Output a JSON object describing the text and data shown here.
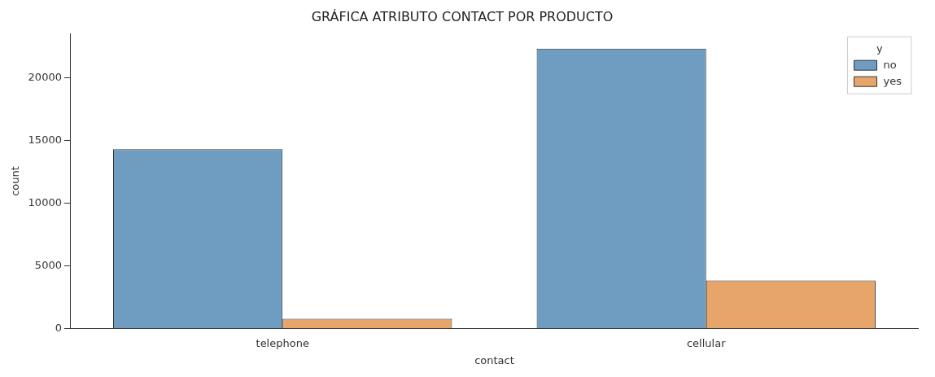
{
  "chart_data": {
    "type": "bar",
    "title": "GRÁFICA ATRIBUTO CONTACT POR PRODUCTO",
    "xlabel": "contact",
    "ylabel": "count",
    "legend_title": "y",
    "categories": [
      "telephone",
      "cellular"
    ],
    "series": [
      {
        "name": "no",
        "color": "#6f9dc2",
        "values": [
          14300,
          22300
        ]
      },
      {
        "name": "yes",
        "color": "#e8a56a",
        "values": [
          800,
          3850
        ]
      }
    ],
    "ylim": [
      0,
      23500
    ],
    "yticks": [
      0,
      5000,
      10000,
      15000,
      20000
    ],
    "grid": false,
    "legend": "top right"
  }
}
